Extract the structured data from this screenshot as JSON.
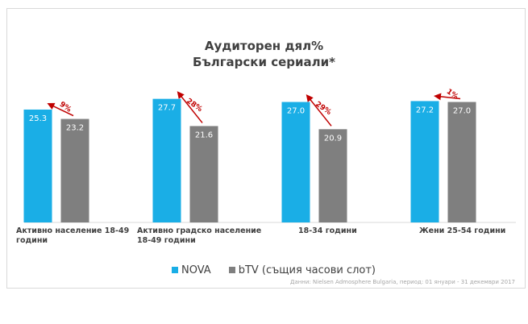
{
  "title_line1": "Аудиторен дял%",
  "title_line2": "Български сериали*",
  "source": "Данни: Nielsen Admosphere Bulgaria, период: 01 януари - 31 декември 2017",
  "legend": {
    "nova": "NOVA",
    "btv": "bTV (същия часови слот)"
  },
  "colors": {
    "nova": "#1aaee6",
    "btv": "#7f7f7f",
    "arrow": "#c00000"
  },
  "chart_data": {
    "type": "bar",
    "categories": [
      "Активно население 18-49 години",
      "Активно градско население 18-49 години",
      "18-34 години",
      "Жени 25-54 години"
    ],
    "series": [
      {
        "name": "NOVA",
        "values": [
          25.3,
          27.7,
          27.0,
          27.2
        ]
      },
      {
        "name": "bTV (същия часови слот)",
        "values": [
          23.2,
          21.6,
          20.9,
          27.0
        ]
      }
    ],
    "value_labels": {
      "NOVA": [
        "25.3",
        "27.7",
        "27.0",
        "27.2"
      ],
      "bTV (същия часови слот)": [
        "23.2",
        "21.6",
        "20.9",
        "27.0"
      ]
    },
    "annotations": [
      "9%",
      "28%",
      "29%",
      "1%"
    ],
    "title": "Аудиторен дял% Български сериали*",
    "ylim": [
      0,
      28
    ]
  }
}
